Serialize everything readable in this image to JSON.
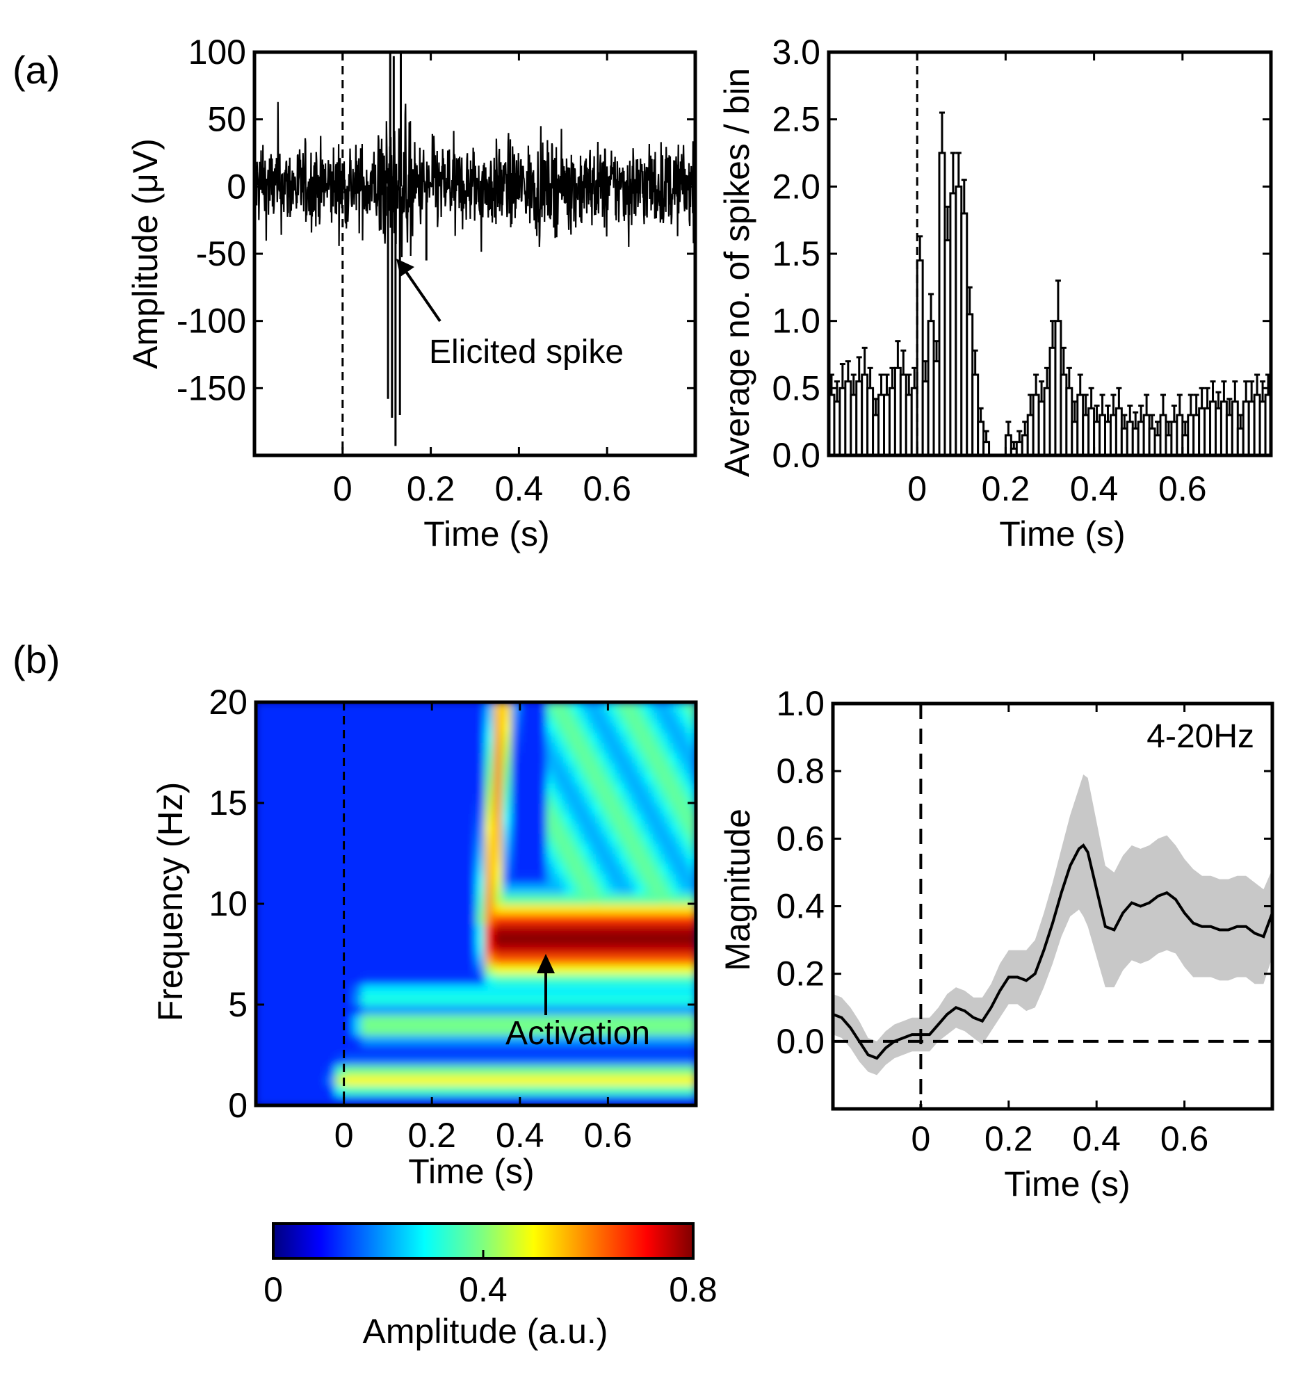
{
  "panels": {
    "a": "(a)",
    "b": "(b)"
  },
  "chart_data": [
    {
      "id": "raw-trace",
      "type": "line",
      "xlabel": "Time (s)",
      "ylabel": "Amplitude  (μV)",
      "xlim": [
        -0.2,
        0.8
      ],
      "ylim": [
        -200,
        100
      ],
      "xticks": [
        0,
        0.2,
        0.4,
        0.6
      ],
      "xtick_labels": [
        "0",
        "0.2",
        "0.4",
        "0.6"
      ],
      "yticks": [
        100,
        50,
        0,
        -50,
        -100,
        -150
      ],
      "ytick_labels": [
        "100",
        "50",
        "0",
        "-50",
        "-100",
        "-150"
      ],
      "marker_line_x": 0,
      "annotation": {
        "text": "Elicited spike",
        "x": 0.13,
        "y": -55
      },
      "spikes": [
        {
          "x": 0.103,
          "y": -158
        },
        {
          "x": 0.112,
          "y": -172
        },
        {
          "x": 0.12,
          "y": -193
        },
        {
          "x": 0.13,
          "y": -170
        },
        {
          "x": 0.108,
          "y": 100
        },
        {
          "x": 0.116,
          "y": 97
        },
        {
          "x": 0.132,
          "y": 100
        },
        {
          "x": 0.19,
          "y": -55
        }
      ],
      "noise_amplitude_uV": 40
    },
    {
      "id": "psth",
      "type": "bar",
      "xlabel": "Time (s)",
      "ylabel": "Average no. of spikes / bin",
      "xlim": [
        -0.2,
        0.8
      ],
      "ylim": [
        0,
        3.0
      ],
      "xticks": [
        0,
        0.2,
        0.4,
        0.6
      ],
      "xtick_labels": [
        "0",
        "0.2",
        "0.4",
        "0.6"
      ],
      "yticks": [
        0.0,
        0.5,
        1.0,
        1.5,
        2.0,
        2.5,
        3.0
      ],
      "ytick_labels": [
        "0.0",
        "0.5",
        "1.0",
        "1.5",
        "2.0",
        "2.5",
        "3.0"
      ],
      "marker_line_x": 0,
      "bin_width": 0.0125,
      "values": [
        0.45,
        0.4,
        0.5,
        0.55,
        0.45,
        0.55,
        0.6,
        0.5,
        0.3,
        0.45,
        0.45,
        0.5,
        0.65,
        0.6,
        0.45,
        0.5,
        1.45,
        0.55,
        1.0,
        0.7,
        2.25,
        1.6,
        1.95,
        2.0,
        1.8,
        1.05,
        0.6,
        0.25,
        0.1,
        0.0,
        0.0,
        0.0,
        0.15,
        0.05,
        0.1,
        0.15,
        0.3,
        0.45,
        0.4,
        0.5,
        0.8,
        1.0,
        0.6,
        0.5,
        0.25,
        0.45,
        0.3,
        0.35,
        0.25,
        0.3,
        0.25,
        0.3,
        0.35,
        0.2,
        0.25,
        0.2,
        0.25,
        0.3,
        0.2,
        0.15,
        0.3,
        0.15,
        0.25,
        0.3,
        0.15,
        0.3,
        0.3,
        0.35,
        0.35,
        0.4,
        0.35,
        0.4,
        0.3,
        0.4,
        0.2,
        0.4,
        0.4,
        0.45,
        0.4,
        0.45
      ],
      "errors": [
        0.15,
        0.15,
        0.18,
        0.15,
        0.15,
        0.18,
        0.2,
        0.15,
        0.12,
        0.15,
        0.15,
        0.15,
        0.2,
        0.18,
        0.15,
        0.15,
        0.18,
        0.15,
        0.2,
        0.15,
        0.3,
        0.25,
        0.3,
        0.25,
        0.25,
        0.2,
        0.18,
        0.1,
        0.08,
        0.0,
        0.0,
        0.0,
        0.1,
        0.05,
        0.08,
        0.1,
        0.15,
        0.15,
        0.15,
        0.15,
        0.2,
        0.3,
        0.2,
        0.15,
        0.15,
        0.15,
        0.15,
        0.15,
        0.12,
        0.15,
        0.12,
        0.15,
        0.15,
        0.1,
        0.12,
        0.12,
        0.12,
        0.15,
        0.1,
        0.1,
        0.15,
        0.1,
        0.12,
        0.15,
        0.1,
        0.15,
        0.15,
        0.15,
        0.15,
        0.15,
        0.12,
        0.15,
        0.12,
        0.15,
        0.1,
        0.15,
        0.15,
        0.15,
        0.15,
        0.15
      ]
    },
    {
      "id": "spectrogram",
      "type": "heatmap",
      "xlabel": "Time (s)",
      "ylabel": "Frequency (Hz)",
      "xlim": [
        -0.2,
        0.8
      ],
      "ylim": [
        0,
        20
      ],
      "xticks": [
        0,
        0.2,
        0.4,
        0.6
      ],
      "xtick_labels": [
        "0",
        "0.2",
        "0.4",
        "0.6"
      ],
      "yticks": [
        20,
        15,
        10,
        5,
        0
      ],
      "ytick_labels": [
        "20",
        "15",
        "10",
        "5",
        "0"
      ],
      "marker_line_x": 0,
      "annotation": {
        "text": "Activation",
        "x": 0.46,
        "y": 7.5
      },
      "colorbar": {
        "label": "Amplitude (a.u.)",
        "range": [
          0,
          0.8
        ],
        "ticks": [
          0,
          0.4,
          0.8
        ],
        "tick_labels": [
          "0",
          "0.4",
          "0.8"
        ],
        "colormap": "jet"
      },
      "features": [
        {
          "kind": "band",
          "f": 1.3,
          "t0": 0.0,
          "t1": 0.8,
          "amp": 0.5
        },
        {
          "kind": "band",
          "f": 4.0,
          "t0": 0.05,
          "t1": 0.8,
          "amp": 0.42
        },
        {
          "kind": "band",
          "f": 5.4,
          "t0": 0.05,
          "t1": 0.8,
          "amp": 0.32
        },
        {
          "kind": "activation",
          "f": 8.3,
          "t0": 0.34,
          "t1": 0.8,
          "amp": 0.8
        },
        {
          "kind": "ridge",
          "f_top": 20,
          "f_bottom": 9,
          "t_top": 0.36,
          "t_bottom": 0.33,
          "amp": 0.6
        }
      ]
    },
    {
      "id": "magnitude",
      "type": "line",
      "xlabel": "Time (s)",
      "ylabel": "Magnitude",
      "legend_text": "4-20Hz",
      "xlim": [
        -0.2,
        0.8
      ],
      "ylim": [
        -0.2,
        1.0
      ],
      "xticks": [
        0,
        0.2,
        0.4,
        0.6
      ],
      "xtick_labels": [
        "0",
        "0.2",
        "0.4",
        "0.6"
      ],
      "yticks": [
        1.0,
        0.8,
        0.6,
        0.4,
        0.2,
        0.0
      ],
      "ytick_labels": [
        "1.0",
        "0.8",
        "0.6",
        "0.4",
        "0.2",
        "0.0"
      ],
      "marker_line_x": 0,
      "baseline_y": 0,
      "x": [
        -0.2,
        -0.18,
        -0.16,
        -0.14,
        -0.12,
        -0.1,
        -0.08,
        -0.06,
        -0.04,
        -0.02,
        0.0,
        0.02,
        0.04,
        0.06,
        0.08,
        0.1,
        0.12,
        0.14,
        0.16,
        0.18,
        0.2,
        0.22,
        0.24,
        0.26,
        0.28,
        0.3,
        0.32,
        0.34,
        0.36,
        0.37,
        0.38,
        0.4,
        0.42,
        0.44,
        0.46,
        0.48,
        0.5,
        0.52,
        0.54,
        0.56,
        0.58,
        0.6,
        0.62,
        0.64,
        0.66,
        0.68,
        0.7,
        0.72,
        0.74,
        0.76,
        0.78,
        0.8
      ],
      "y": [
        0.08,
        0.07,
        0.04,
        0.0,
        -0.04,
        -0.05,
        -0.02,
        0.0,
        0.01,
        0.02,
        0.02,
        0.02,
        0.05,
        0.08,
        0.1,
        0.09,
        0.07,
        0.06,
        0.1,
        0.15,
        0.19,
        0.19,
        0.18,
        0.2,
        0.27,
        0.35,
        0.44,
        0.52,
        0.57,
        0.58,
        0.56,
        0.45,
        0.34,
        0.33,
        0.38,
        0.41,
        0.4,
        0.41,
        0.43,
        0.44,
        0.42,
        0.38,
        0.35,
        0.34,
        0.34,
        0.33,
        0.33,
        0.34,
        0.34,
        0.32,
        0.31,
        0.38
      ],
      "band_halfwidth": [
        0.06,
        0.06,
        0.06,
        0.06,
        0.05,
        0.05,
        0.05,
        0.05,
        0.05,
        0.05,
        0.05,
        0.05,
        0.05,
        0.06,
        0.06,
        0.06,
        0.06,
        0.07,
        0.07,
        0.08,
        0.08,
        0.08,
        0.09,
        0.1,
        0.11,
        0.12,
        0.13,
        0.15,
        0.18,
        0.21,
        0.22,
        0.2,
        0.18,
        0.17,
        0.17,
        0.17,
        0.17,
        0.17,
        0.17,
        0.17,
        0.16,
        0.16,
        0.16,
        0.15,
        0.15,
        0.15,
        0.15,
        0.15,
        0.15,
        0.15,
        0.14,
        0.13
      ]
    }
  ]
}
